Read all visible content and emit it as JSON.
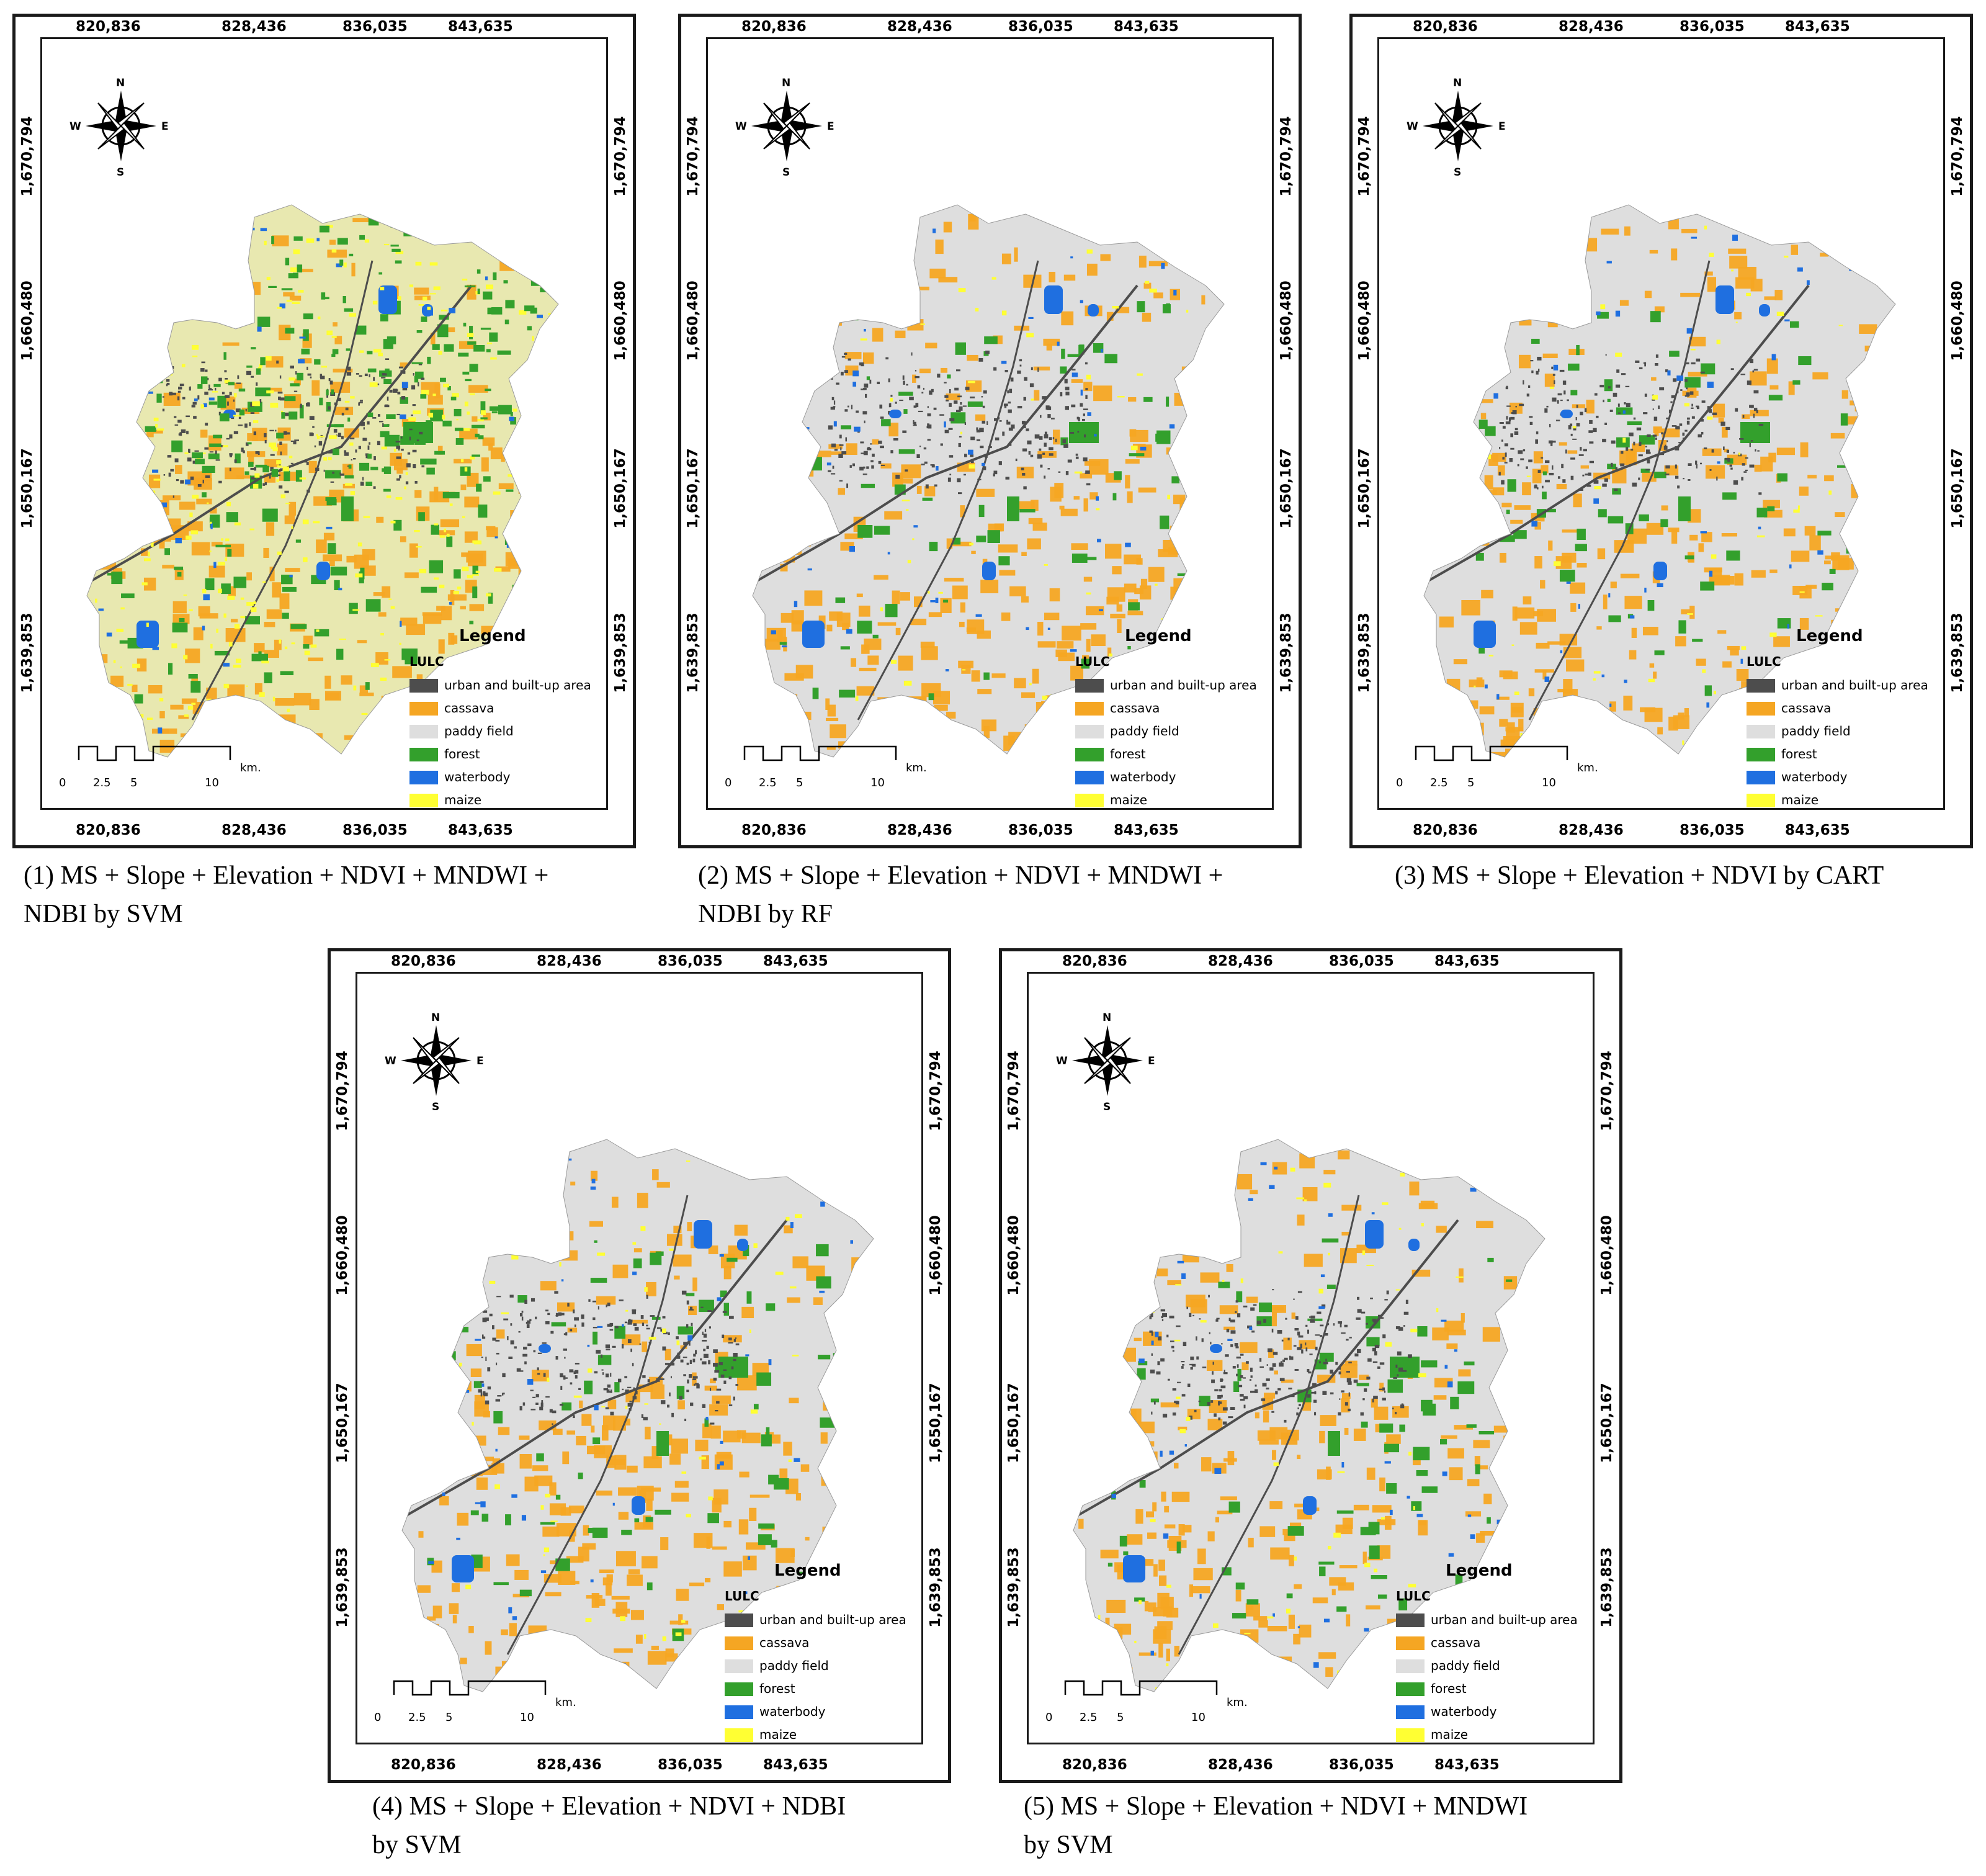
{
  "legend": {
    "title": "Legend",
    "subtitle": "LULC",
    "classes": [
      {
        "label": "urban and built-up area",
        "color": "#4d4d4d"
      },
      {
        "label": "cassava",
        "color": "#f5a623"
      },
      {
        "label": "paddy field",
        "color": "#dedede"
      },
      {
        "label": "forest",
        "color": "#33a02c"
      },
      {
        "label": "waterbody",
        "color": "#1f6fe0"
      },
      {
        "label": "maize",
        "color": "#ffff33"
      }
    ]
  },
  "coords": {
    "x": [
      "820,836",
      "828,436",
      "836,035",
      "843,635"
    ],
    "y": [
      "1,670,794",
      "1,660,480",
      "1,650,167",
      "1,639,853"
    ]
  },
  "compass": {
    "n": "N",
    "s": "S",
    "e": "E",
    "w": "W"
  },
  "scalebar": {
    "labels": [
      "0",
      "2.5",
      "5",
      "10"
    ],
    "unit": "km."
  },
  "panels": [
    {
      "caption": [
        "(1) MS + Slope + Elevation + NDVI + MNDWI +",
        "NDBI by SVM"
      ]
    },
    {
      "caption": [
        "(2) MS + Slope + Elevation + NDVI + MNDWI +",
        "NDBI by RF"
      ]
    },
    {
      "caption": [
        "(3) MS + Slope + Elevation + NDVI by CART"
      ]
    },
    {
      "caption": [
        "(4) MS + Slope + Elevation + NDVI + NDBI",
        "by SVM"
      ]
    },
    {
      "caption": [
        "(5) MS + Slope + Elevation + NDVI + MNDWI",
        "by SVM"
      ]
    }
  ]
}
